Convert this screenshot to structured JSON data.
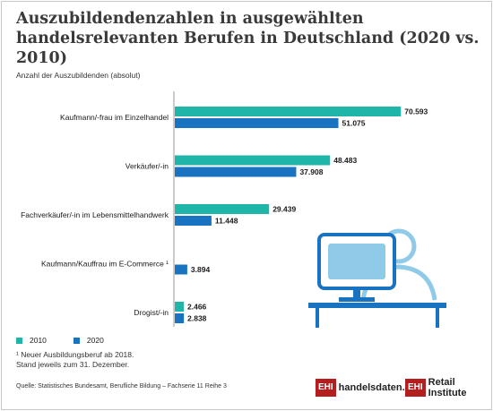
{
  "title": "Auszubildendenzahlen in ausgewählten handelsrelevanten Berufen in Deutschland (2020 vs. 2010)",
  "subtitle": "Anzahl der Auszubildenden (absolut)",
  "legend": {
    "item_2010": "2010",
    "item_2020": "2020"
  },
  "footnotes": {
    "line1": "¹ Neuer Ausbildungsberuf ab 2018.",
    "line2": "Stand jeweils zum 31. Dezember."
  },
  "source": "Quelle: Statistisches Bundesamt, Berufliche Bildung – Fachserie 11 Reihe 3",
  "logos": {
    "ehi_box_1": "EHI",
    "ehi_text_1": "handelsdaten.de",
    "ehi_box_2": "EHI",
    "ehi_text_2": "Retail Institute"
  },
  "colors": {
    "series_2010": "#1fb5a8",
    "series_2020": "#1a73c1",
    "illustration_light": "#8fcbe9",
    "illustration_dark": "#1a73c1"
  },
  "chart_data": {
    "type": "bar",
    "orientation": "horizontal",
    "categories": [
      "Kaufmann/-frau im Einzelhandel",
      "Verkäufer/-in",
      "Fachverkäufer/-in im Lebensmittelhandwerk",
      "Kaufmann/Kauffrau im E-Commerce ¹",
      "Drogist/-in"
    ],
    "series": [
      {
        "name": "2010",
        "values": [
          70593,
          48483,
          29439,
          null,
          2466
        ],
        "labels": [
          "70.593",
          "48.483",
          "29.439",
          "",
          "2.466"
        ]
      },
      {
        "name": "2020",
        "values": [
          51075,
          37908,
          11448,
          3894,
          2838
        ],
        "labels": [
          "51.075",
          "37.908",
          "11.448",
          "3.894",
          "2.838"
        ]
      }
    ],
    "xlim": [
      0,
      75000
    ],
    "grid": false,
    "legend_position": "bottom-left"
  }
}
